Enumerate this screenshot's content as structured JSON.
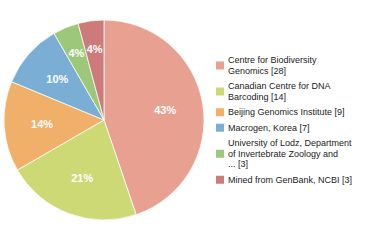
{
  "chart_data": {
    "type": "pie",
    "labels": [
      "Centre for Biodiversity\nGenomics [28]",
      "Canadian Centre for DNA\nBarcoding [14]",
      "Beijing Genomics Institute [9]",
      "Macrogen, Korea [7]",
      "University of Lodz, Department\nof Invertebrate Zoology and\n... [3]",
      "Mined from GenBank, NCBI [3]"
    ],
    "values": [
      43,
      21,
      14,
      10,
      4,
      4
    ],
    "value_labels": [
      "43%",
      "21%",
      "14%",
      "10%",
      "4%",
      "4%"
    ],
    "colors": [
      "#e8a090",
      "#cdd975",
      "#f0b06a",
      "#7aaed4",
      "#9dc87a",
      "#cc7a7a"
    ],
    "data_labels": true,
    "legend": "right"
  }
}
